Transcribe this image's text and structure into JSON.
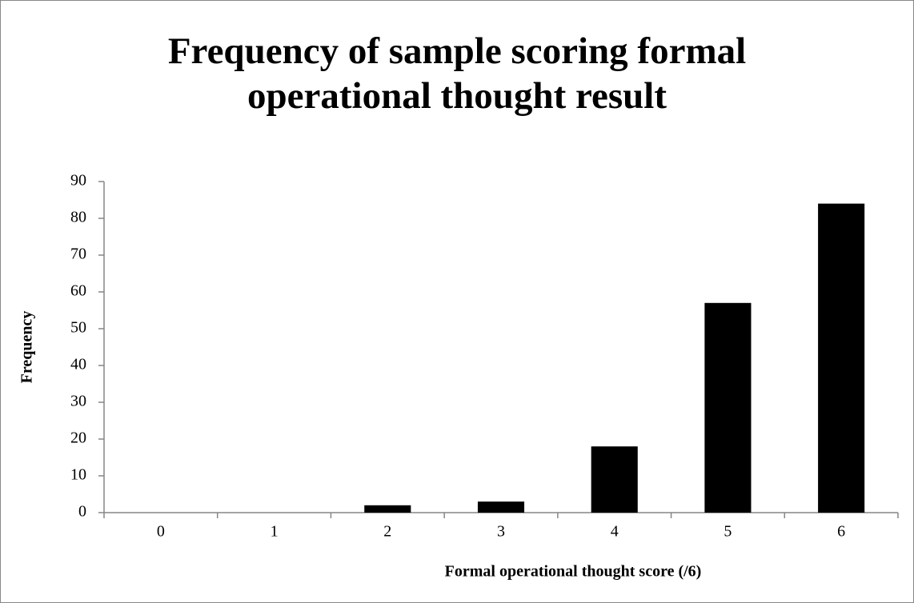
{
  "chart_data": {
    "type": "bar",
    "title": "Frequency of sample scoring formal operational thought result",
    "x_label": "Formal operational thought score (/6)",
    "y_label": "Frequency",
    "categories": [
      "0",
      "1",
      "2",
      "3",
      "4",
      "5",
      "6"
    ],
    "values": [
      0,
      0,
      2,
      3,
      18,
      57,
      84
    ],
    "color": "#000000",
    "ylim": [
      0,
      90
    ],
    "yticks": [
      0,
      10,
      20,
      30,
      40,
      50,
      60,
      70,
      80,
      90
    ],
    "grid": false
  }
}
